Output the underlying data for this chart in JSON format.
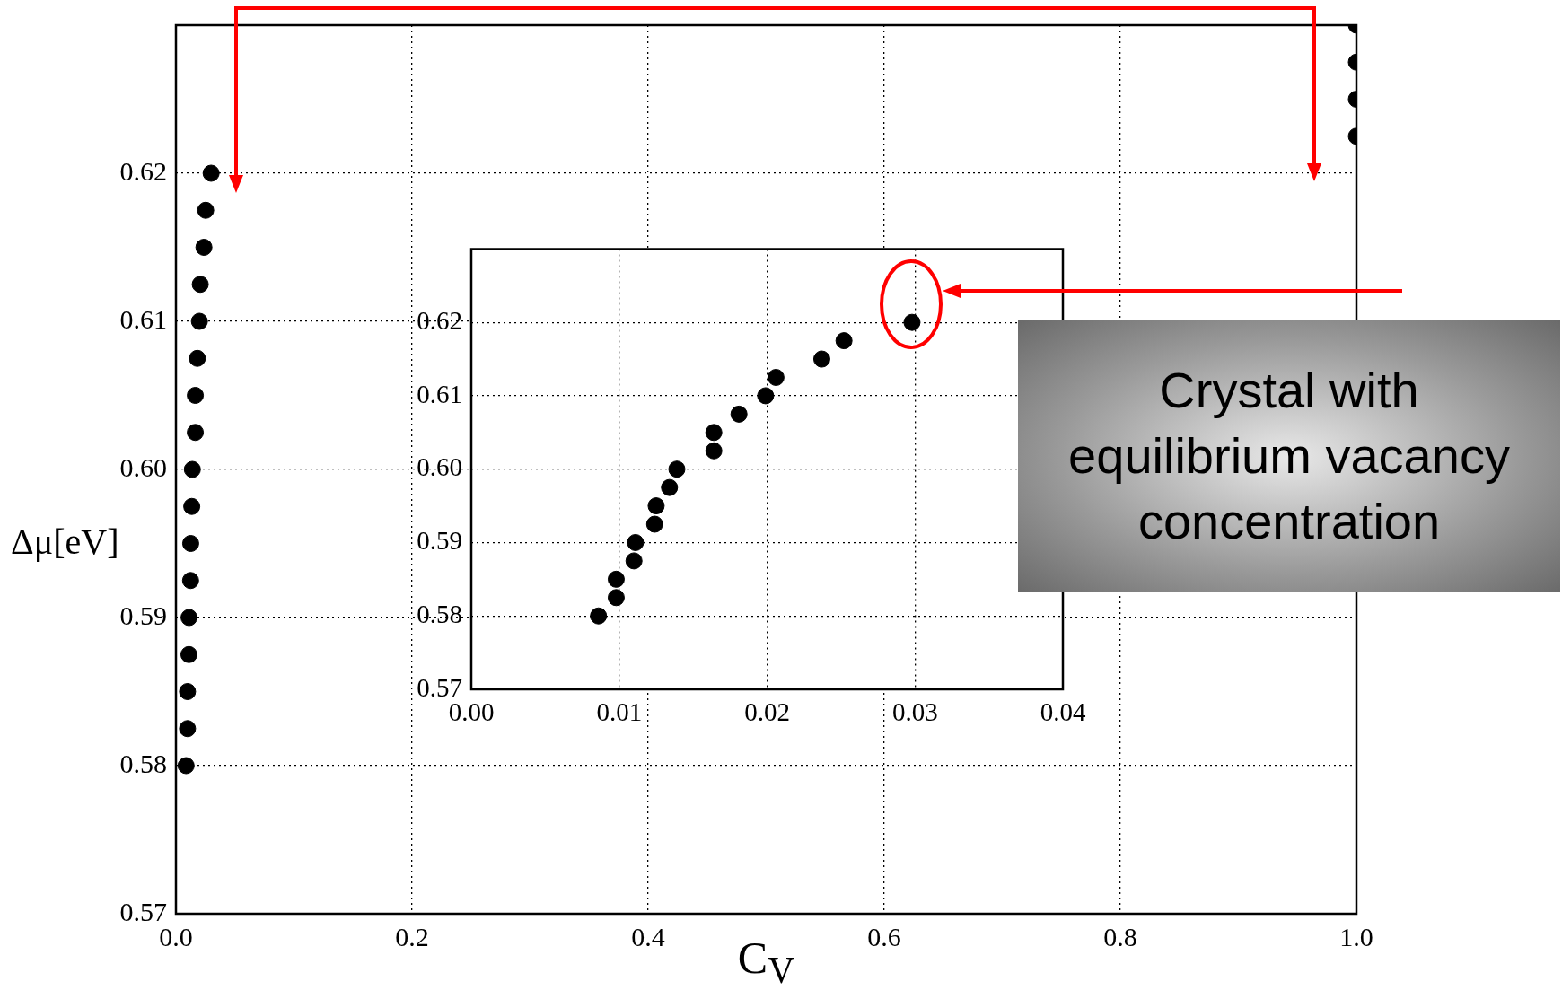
{
  "chart_data": [
    {
      "type": "scatter",
      "xlabel": "C$_{V}$",
      "ylabel": "Δμ[eV]",
      "marker": "circle",
      "grid": true,
      "xlim": [
        0,
        1
      ],
      "xticks": [
        {
          "value": 0,
          "label": "0.0"
        },
        {
          "value": 0.2,
          "label": "0.2"
        },
        {
          "value": 0.4,
          "label": "0.4"
        },
        {
          "value": 0.6,
          "label": "0.6"
        },
        {
          "value": 0.8,
          "label": "0.8"
        },
        {
          "value": 1,
          "label": "1.0"
        }
      ],
      "ylim": [
        0.57,
        0.63
      ],
      "yticks": [
        0.57,
        0.58,
        0.59,
        {
          "value": 0.6,
          "label": "0.60"
        },
        0.61,
        0.62
      ],
      "series": [
        {
          "color": "#000000",
          "x": [
            0.0086,
            0.0098,
            0.0098,
            0.011,
            0.0111,
            0.0124,
            0.0125,
            0.0134,
            0.0139,
            0.0164,
            0.0164,
            0.0181,
            0.0199,
            0.0206,
            0.0237,
            0.0252,
            0.0298,
            1,
            1,
            1,
            1
          ],
          "values": [
            0.58,
            0.5825,
            0.585,
            0.5875,
            0.59,
            0.5925,
            0.595,
            0.5975,
            0.6,
            0.6025,
            0.605,
            0.6075,
            0.61,
            0.6125,
            0.615,
            0.6175,
            0.62,
            0.6225,
            0.625,
            0.6275,
            0.63
          ]
        }
      ]
    },
    {
      "type": "scatter",
      "marker": "circle",
      "grid": true,
      "xlim": [
        0,
        0.04
      ],
      "xticks": [
        {
          "value": 0,
          "label": "0.00"
        },
        0.01,
        0.02,
        0.03,
        {
          "value": 0.04,
          "label": "0.04"
        }
      ],
      "ylim": [
        0.57,
        0.63
      ],
      "yticks": [
        0.57,
        0.58,
        0.59,
        {
          "value": 0.6,
          "label": "0.60"
        },
        0.61,
        0.62
      ],
      "annotations": [
        "Crystal with equilibrium vacancy concentration"
      ],
      "series": [
        {
          "color": "#000000",
          "x": [
            0.0086,
            0.0098,
            0.0098,
            0.011,
            0.0111,
            0.0124,
            0.0125,
            0.0134,
            0.0139,
            0.0164,
            0.0164,
            0.0181,
            0.0199,
            0.0206,
            0.0237,
            0.0252,
            0.0298
          ],
          "values": [
            0.58,
            0.5825,
            0.585,
            0.5875,
            0.59,
            0.5925,
            0.595,
            0.5975,
            0.6,
            0.6025,
            0.605,
            0.6075,
            0.61,
            0.6125,
            0.615,
            0.6175,
            0.62
          ]
        }
      ]
    }
  ]
}
